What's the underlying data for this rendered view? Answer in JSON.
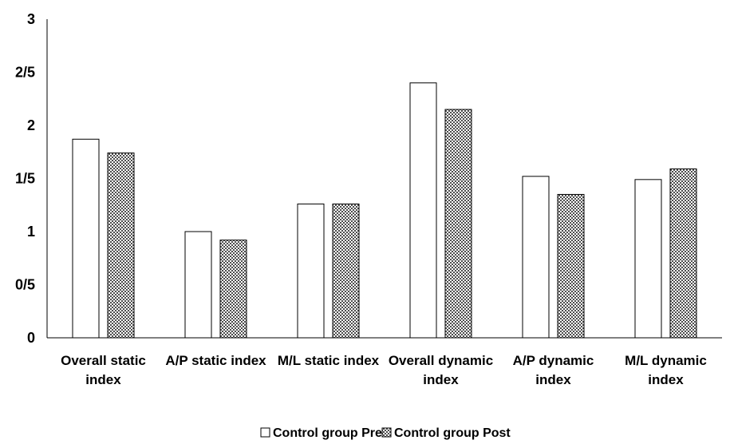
{
  "chart_data": {
    "type": "bar",
    "title": "",
    "xlabel": "",
    "ylabel": "",
    "ylim": [
      0,
      3
    ],
    "yticks": [
      "0",
      "0/5",
      "1",
      "1/5",
      "2",
      "2/5",
      "3"
    ],
    "ytick_values": [
      0,
      0.5,
      1,
      1.5,
      2,
      2.5,
      3
    ],
    "grid": false,
    "legend_position": "bottom",
    "categories": [
      [
        "Overall static",
        "index"
      ],
      [
        "A/P static index"
      ],
      [
        "M/L static index"
      ],
      [
        "Overall dynamic",
        "index"
      ],
      [
        "A/P dynamic",
        "index"
      ],
      [
        "M/L dynamic",
        "index"
      ]
    ],
    "series": [
      {
        "name": "Control group Pre",
        "values": [
          1.87,
          1.0,
          1.26,
          2.4,
          1.52,
          1.49
        ],
        "fill": "#ffffff",
        "pattern": "none"
      },
      {
        "name": "Control group Post",
        "values": [
          1.74,
          0.92,
          1.26,
          2.15,
          1.35,
          1.59
        ],
        "fill": "#7f7f7f",
        "pattern": "checker"
      }
    ]
  }
}
